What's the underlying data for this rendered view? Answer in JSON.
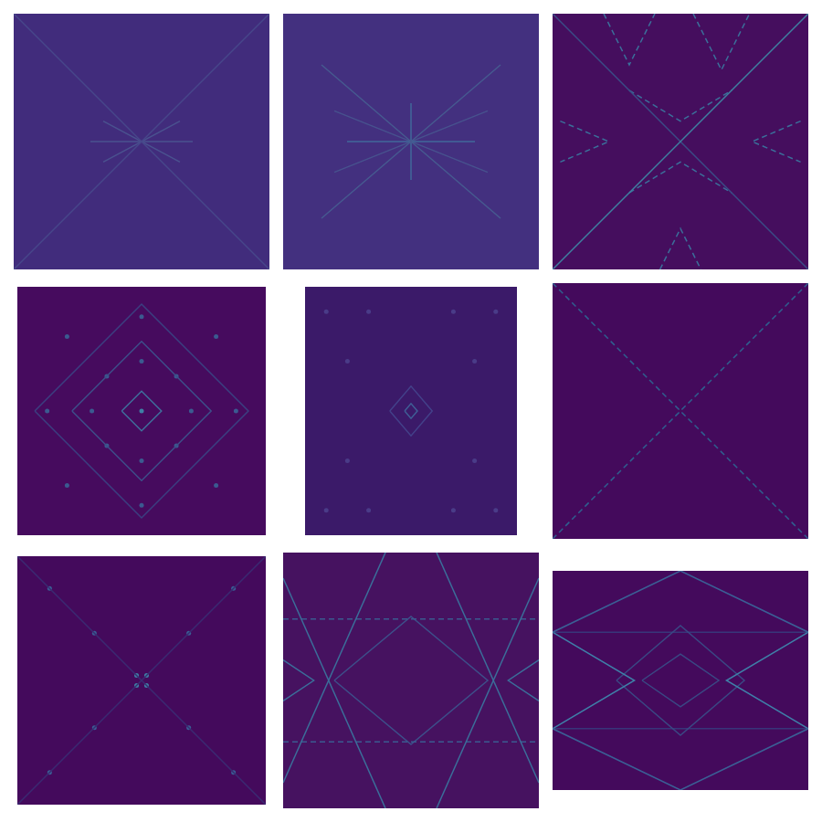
{
  "chart_data": [
    {
      "type": "line",
      "xlim": [
        0,
        100
      ],
      "ylim": [
        0,
        100
      ],
      "grid": false,
      "tick_labels": false,
      "color": "#412c7c",
      "series": [
        {
          "color": "#47468a",
          "x": [
            0,
            100
          ],
          "values": [
            0,
            100
          ],
          "line_style": "solid"
        },
        {
          "color": "#47468a",
          "x": [
            0,
            100
          ],
          "values": [
            100,
            0
          ],
          "line_style": "solid"
        },
        {
          "color": "#4a528f",
          "x": [
            30,
            70
          ],
          "values": [
            50,
            50
          ],
          "line_style": "solid"
        },
        {
          "color": "#4a528f",
          "x": [
            35,
            65
          ],
          "values": [
            42,
            58
          ],
          "line_style": "solid"
        },
        {
          "color": "#4a528f",
          "x": [
            35,
            65
          ],
          "values": [
            58,
            42
          ],
          "line_style": "solid"
        }
      ]
    },
    {
      "type": "line",
      "xlim": [
        0,
        100
      ],
      "ylim": [
        0,
        100
      ],
      "grid": false,
      "tick_labels": false,
      "color": "#43307f",
      "series": [
        {
          "color": "#465a90",
          "x": [
            15,
            85
          ],
          "values": [
            20,
            80
          ],
          "line_style": "solid"
        },
        {
          "color": "#465a90",
          "x": [
            15,
            85
          ],
          "values": [
            80,
            20
          ],
          "line_style": "solid"
        },
        {
          "color": "#40699a",
          "x": [
            25,
            75
          ],
          "values": [
            50,
            50
          ],
          "line_style": "solid"
        },
        {
          "color": "#40699a",
          "x": [
            50,
            50
          ],
          "values": [
            35,
            65
          ],
          "line_style": "solid"
        },
        {
          "color": "#47528e",
          "x": [
            20,
            80
          ],
          "values": [
            38,
            62
          ],
          "line_style": "solid"
        },
        {
          "color": "#47528e",
          "x": [
            20,
            80
          ],
          "values": [
            62,
            38
          ],
          "line_style": "solid"
        }
      ]
    },
    {
      "type": "line",
      "xlim": [
        0,
        100
      ],
      "ylim": [
        0,
        100
      ],
      "grid": false,
      "tick_labels": false,
      "color": "#450e5e",
      "series": [
        {
          "color": "#3f7fa0",
          "x": [
            0,
            100
          ],
          "values": [
            0,
            100
          ],
          "line_style": "solid"
        },
        {
          "color": "#3a4c86",
          "x": [
            0,
            100
          ],
          "values": [
            100,
            0
          ],
          "line_style": "solid"
        },
        {
          "color": "#3b6f9a",
          "x": [
            20,
            30,
            40
          ],
          "values": [
            100,
            80,
            100
          ],
          "line_style": "dashed"
        },
        {
          "color": "#3b6f9a",
          "x": [
            55,
            66,
            77
          ],
          "values": [
            100,
            78,
            100
          ],
          "line_style": "dashed"
        },
        {
          "color": "#3b6f9a",
          "x": [
            42,
            50,
            58
          ],
          "values": [
            0,
            16,
            0
          ],
          "line_style": "dashed"
        },
        {
          "color": "#3b6f9a",
          "x": [
            3,
            22,
            3
          ],
          "values": [
            58,
            50,
            42
          ],
          "line_style": "dashed"
        },
        {
          "color": "#3b6f9a",
          "x": [
            97,
            78,
            97
          ],
          "values": [
            58,
            50,
            42
          ],
          "line_style": "dashed"
        },
        {
          "color": "#3b6f9a",
          "x": [
            30,
            50,
            70
          ],
          "values": [
            70,
            58,
            70
          ],
          "line_style": "dashed"
        },
        {
          "color": "#3b6f9a",
          "x": [
            30,
            50,
            70
          ],
          "values": [
            30,
            42,
            30
          ],
          "line_style": "dashed"
        }
      ]
    },
    {
      "type": "line",
      "xlim": [
        0,
        100
      ],
      "ylim": [
        0,
        100
      ],
      "grid": false,
      "tick_labels": false,
      "color": "#460b5e",
      "series": [
        {
          "color": "#3f6f9c",
          "x": [
            42,
            50,
            58,
            50,
            42
          ],
          "values": [
            50,
            58,
            50,
            42,
            50
          ],
          "line_style": "solid"
        },
        {
          "color": "#3d4f8a",
          "x": [
            22,
            50,
            78,
            50,
            22
          ],
          "values": [
            50,
            78,
            50,
            22,
            50
          ],
          "line_style": "solid"
        },
        {
          "color": "#3b3f80",
          "x": [
            7,
            50,
            93,
            50,
            7
          ],
          "values": [
            50,
            93,
            50,
            7,
            50
          ],
          "line_style": "solid"
        },
        {
          "color": "#3f7fa5",
          "x": [
            50
          ],
          "values": [
            50
          ],
          "line_style": "none",
          "marker": "circle"
        },
        {
          "color": "#3b5a90",
          "x": [
            50,
            50,
            30,
            70,
            36,
            64,
            36,
            64,
            50,
            50,
            12,
            88,
            20,
            80,
            20,
            80
          ],
          "values": [
            30,
            70,
            50,
            50,
            36,
            36,
            64,
            64,
            12,
            88,
            50,
            50,
            20,
            20,
            80,
            80
          ],
          "line_style": "none",
          "marker": "circle"
        }
      ]
    },
    {
      "type": "line",
      "xlim": [
        0,
        100
      ],
      "ylim": [
        0,
        100
      ],
      "grid": false,
      "tick_labels": false,
      "color": "#3b1a69",
      "series": [
        {
          "color": "#3f5f96",
          "x": [
            47,
            50,
            53,
            50,
            47
          ],
          "values": [
            50,
            53,
            50,
            47,
            50
          ],
          "line_style": "solid"
        },
        {
          "color": "#43418a",
          "x": [
            40,
            50,
            60,
            50,
            40
          ],
          "values": [
            50,
            60,
            50,
            40,
            50
          ],
          "line_style": "solid"
        },
        {
          "color": "#4a3c88",
          "x": [
            10,
            30,
            70,
            90,
            10,
            30,
            70,
            90,
            20,
            80,
            20,
            80
          ],
          "values": [
            10,
            10,
            10,
            10,
            90,
            90,
            90,
            90,
            30,
            30,
            70,
            70
          ],
          "line_style": "none",
          "marker": "circle"
        }
      ]
    },
    {
      "type": "line",
      "xlim": [
        0,
        100
      ],
      "ylim": [
        0,
        100
      ],
      "grid": false,
      "tick_labels": false,
      "color": "#440a5c",
      "series": [
        {
          "color": "#2f5f8f",
          "x": [
            0,
            100
          ],
          "values": [
            0,
            100
          ],
          "line_style": "dashed"
        },
        {
          "color": "#2f5f8f",
          "x": [
            0,
            100
          ],
          "values": [
            100,
            0
          ],
          "line_style": "dashed"
        }
      ]
    },
    {
      "type": "line",
      "xlim": [
        0,
        100
      ],
      "ylim": [
        0,
        100
      ],
      "grid": false,
      "tick_labels": false,
      "color": "#440a5c",
      "series": [
        {
          "color": "#3a2a72",
          "x": [
            0,
            100
          ],
          "values": [
            0,
            100
          ],
          "line_style": "solid"
        },
        {
          "color": "#3a2a72",
          "x": [
            0,
            100
          ],
          "values": [
            100,
            0
          ],
          "line_style": "solid"
        },
        {
          "color": "#3f7fa5",
          "x": [
            48,
            52,
            48,
            52
          ],
          "values": [
            48,
            48,
            52,
            52
          ],
          "line_style": "none",
          "marker": "circle"
        },
        {
          "color": "#3a5f95",
          "x": [
            31,
            69,
            31,
            69,
            13,
            87,
            13,
            87
          ],
          "values": [
            31,
            31,
            69,
            69,
            13,
            13,
            87,
            87
          ],
          "line_style": "none",
          "marker": "circle"
        }
      ]
    },
    {
      "type": "line",
      "xlim": [
        0,
        100
      ],
      "ylim": [
        0,
        100
      ],
      "grid": false,
      "tick_labels": false,
      "color": "#461260",
      "series": [
        {
          "color": "#3b6f9a",
          "x": [
            40,
            0
          ],
          "values": [
            100,
            10
          ],
          "line_style": "solid"
        },
        {
          "color": "#3b6f9a",
          "x": [
            60,
            100
          ],
          "values": [
            100,
            10
          ],
          "line_style": "solid"
        },
        {
          "color": "#3b6f9a",
          "x": [
            40,
            0
          ],
          "values": [
            0,
            90
          ],
          "line_style": "solid"
        },
        {
          "color": "#3b6f9a",
          "x": [
            60,
            100
          ],
          "values": [
            0,
            90
          ],
          "line_style": "solid"
        },
        {
          "color": "#3a5a90",
          "x": [
            0,
            100
          ],
          "values": [
            74,
            74
          ],
          "line_style": "dashed"
        },
        {
          "color": "#3a5a90",
          "x": [
            0,
            100
          ],
          "values": [
            26,
            26
          ],
          "line_style": "dashed"
        },
        {
          "color": "#3d4f8a",
          "x": [
            20,
            50,
            80,
            50,
            20
          ],
          "values": [
            50,
            75,
            50,
            25,
            50
          ],
          "line_style": "solid"
        },
        {
          "color": "#3b6f9a",
          "x": [
            0,
            12,
            0
          ],
          "values": [
            58,
            50,
            42
          ],
          "line_style": "solid"
        },
        {
          "color": "#3b6f9a",
          "x": [
            100,
            88,
            100
          ],
          "values": [
            58,
            50,
            42
          ],
          "line_style": "solid"
        }
      ]
    },
    {
      "type": "line",
      "xlim": [
        0,
        100
      ],
      "ylim": [
        0,
        100
      ],
      "grid": false,
      "tick_labels": false,
      "color": "#440a5c",
      "series": [
        {
          "color": "#3b5f95",
          "x": [
            0,
            50,
            100
          ],
          "values": [
            72,
            100,
            72
          ],
          "line_style": "solid"
        },
        {
          "color": "#3b5f95",
          "x": [
            0,
            50,
            100
          ],
          "values": [
            28,
            0,
            28
          ],
          "line_style": "solid"
        },
        {
          "color": "#3f7fa8",
          "x": [
            0,
            32,
            0
          ],
          "values": [
            72,
            50,
            28
          ],
          "line_style": "solid"
        },
        {
          "color": "#3f7fa8",
          "x": [
            100,
            68,
            100
          ],
          "values": [
            72,
            50,
            28
          ],
          "line_style": "solid"
        },
        {
          "color": "#3a4884",
          "x": [
            25,
            50,
            75,
            50,
            25
          ],
          "values": [
            50,
            75,
            50,
            25,
            50
          ],
          "line_style": "solid"
        },
        {
          "color": "#3a4884",
          "x": [
            35,
            50,
            65,
            50,
            35
          ],
          "values": [
            50,
            62,
            50,
            38,
            50
          ],
          "line_style": "solid"
        },
        {
          "color": "#38367a",
          "x": [
            0,
            100
          ],
          "values": [
            72,
            72
          ],
          "line_style": "solid"
        },
        {
          "color": "#38367a",
          "x": [
            0,
            100
          ],
          "values": [
            28,
            28
          ],
          "line_style": "solid"
        }
      ]
    }
  ]
}
